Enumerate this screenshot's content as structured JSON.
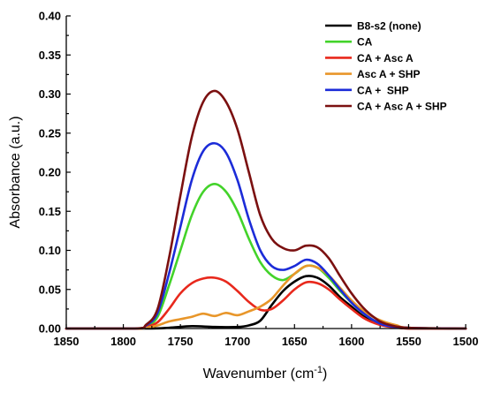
{
  "chart_data": {
    "type": "line",
    "title": "",
    "xlabel": "Wavenumber (cm",
    "xlabel_sup": "-1",
    "xlabel_suffix": ")",
    "ylabel": "Absorbance (a.u.)",
    "xlim": [
      1850,
      1500
    ],
    "x_reversed": true,
    "ylim": [
      0,
      0.4
    ],
    "xticks": [
      1850,
      1800,
      1750,
      1700,
      1650,
      1600,
      1550,
      1500
    ],
    "yticks": [
      0.0,
      0.05,
      0.1,
      0.15,
      0.2,
      0.25,
      0.3,
      0.35,
      0.4
    ],
    "ytick_labels": [
      "0.00",
      "0.05",
      "0.10",
      "0.15",
      "0.20",
      "0.25",
      "0.30",
      "0.35",
      "0.40"
    ],
    "grid": false,
    "legend_position": "top-right",
    "series": [
      {
        "name": "B8-s2 (none)",
        "color": "#000000",
        "points": [
          [
            1850,
            0.0
          ],
          [
            1780,
            0.0
          ],
          [
            1760,
            0.001
          ],
          [
            1740,
            0.003
          ],
          [
            1720,
            0.002
          ],
          [
            1700,
            0.002
          ],
          [
            1690,
            0.004
          ],
          [
            1680,
            0.01
          ],
          [
            1670,
            0.03
          ],
          [
            1660,
            0.048
          ],
          [
            1650,
            0.06
          ],
          [
            1640,
            0.067
          ],
          [
            1630,
            0.065
          ],
          [
            1620,
            0.055
          ],
          [
            1610,
            0.04
          ],
          [
            1600,
            0.028
          ],
          [
            1590,
            0.016
          ],
          [
            1580,
            0.008
          ],
          [
            1570,
            0.004
          ],
          [
            1550,
            0.0
          ],
          [
            1500,
            0.0
          ]
        ]
      },
      {
        "name": "CA",
        "color": "#43d32a",
        "points": [
          [
            1850,
            0.0
          ],
          [
            1790,
            0.0
          ],
          [
            1780,
            0.003
          ],
          [
            1770,
            0.015
          ],
          [
            1760,
            0.055
          ],
          [
            1750,
            0.1
          ],
          [
            1740,
            0.145
          ],
          [
            1730,
            0.175
          ],
          [
            1720,
            0.185
          ],
          [
            1710,
            0.175
          ],
          [
            1700,
            0.15
          ],
          [
            1690,
            0.115
          ],
          [
            1680,
            0.085
          ],
          [
            1670,
            0.068
          ],
          [
            1660,
            0.062
          ],
          [
            1650,
            0.07
          ],
          [
            1640,
            0.08
          ],
          [
            1630,
            0.078
          ],
          [
            1620,
            0.065
          ],
          [
            1610,
            0.048
          ],
          [
            1600,
            0.033
          ],
          [
            1590,
            0.02
          ],
          [
            1580,
            0.01
          ],
          [
            1570,
            0.004
          ],
          [
            1550,
            0.001
          ],
          [
            1500,
            0.0
          ]
        ]
      },
      {
        "name": "CA + Asc A",
        "color": "#e8281c",
        "points": [
          [
            1850,
            0.0
          ],
          [
            1790,
            0.0
          ],
          [
            1780,
            0.002
          ],
          [
            1770,
            0.008
          ],
          [
            1760,
            0.025
          ],
          [
            1750,
            0.045
          ],
          [
            1740,
            0.058
          ],
          [
            1730,
            0.064
          ],
          [
            1720,
            0.065
          ],
          [
            1710,
            0.06
          ],
          [
            1700,
            0.048
          ],
          [
            1690,
            0.034
          ],
          [
            1680,
            0.024
          ],
          [
            1670,
            0.025
          ],
          [
            1660,
            0.036
          ],
          [
            1650,
            0.05
          ],
          [
            1640,
            0.059
          ],
          [
            1630,
            0.058
          ],
          [
            1620,
            0.05
          ],
          [
            1610,
            0.037
          ],
          [
            1600,
            0.025
          ],
          [
            1590,
            0.014
          ],
          [
            1580,
            0.007
          ],
          [
            1570,
            0.003
          ],
          [
            1550,
            0.0
          ],
          [
            1500,
            0.0
          ]
        ]
      },
      {
        "name": "Asc A + SHP",
        "color": "#e8962a",
        "points": [
          [
            1850,
            0.0
          ],
          [
            1790,
            0.0
          ],
          [
            1780,
            0.001
          ],
          [
            1770,
            0.004
          ],
          [
            1760,
            0.009
          ],
          [
            1750,
            0.012
          ],
          [
            1740,
            0.015
          ],
          [
            1730,
            0.019
          ],
          [
            1720,
            0.016
          ],
          [
            1710,
            0.02
          ],
          [
            1700,
            0.017
          ],
          [
            1690,
            0.022
          ],
          [
            1680,
            0.028
          ],
          [
            1670,
            0.038
          ],
          [
            1660,
            0.055
          ],
          [
            1650,
            0.07
          ],
          [
            1640,
            0.08
          ],
          [
            1630,
            0.078
          ],
          [
            1620,
            0.068
          ],
          [
            1610,
            0.052
          ],
          [
            1600,
            0.036
          ],
          [
            1590,
            0.023
          ],
          [
            1580,
            0.014
          ],
          [
            1570,
            0.008
          ],
          [
            1560,
            0.004
          ],
          [
            1550,
            0.001
          ],
          [
            1500,
            0.0
          ]
        ]
      },
      {
        "name": "CA +  SHP",
        "color": "#1c2cd8",
        "points": [
          [
            1850,
            0.0
          ],
          [
            1790,
            0.0
          ],
          [
            1780,
            0.004
          ],
          [
            1770,
            0.02
          ],
          [
            1760,
            0.07
          ],
          [
            1750,
            0.13
          ],
          [
            1740,
            0.19
          ],
          [
            1730,
            0.227
          ],
          [
            1720,
            0.237
          ],
          [
            1710,
            0.225
          ],
          [
            1700,
            0.19
          ],
          [
            1690,
            0.14
          ],
          [
            1680,
            0.1
          ],
          [
            1670,
            0.08
          ],
          [
            1660,
            0.075
          ],
          [
            1650,
            0.08
          ],
          [
            1640,
            0.088
          ],
          [
            1630,
            0.083
          ],
          [
            1620,
            0.068
          ],
          [
            1610,
            0.05
          ],
          [
            1600,
            0.033
          ],
          [
            1590,
            0.02
          ],
          [
            1580,
            0.01
          ],
          [
            1570,
            0.004
          ],
          [
            1550,
            0.001
          ],
          [
            1500,
            0.0
          ]
        ]
      },
      {
        "name": "CA + Asc A + SHP",
        "color": "#7b1010",
        "points": [
          [
            1850,
            0.0
          ],
          [
            1790,
            0.0
          ],
          [
            1780,
            0.005
          ],
          [
            1770,
            0.025
          ],
          [
            1760,
            0.09
          ],
          [
            1750,
            0.17
          ],
          [
            1740,
            0.245
          ],
          [
            1730,
            0.29
          ],
          [
            1720,
            0.304
          ],
          [
            1710,
            0.29
          ],
          [
            1700,
            0.255
          ],
          [
            1690,
            0.2
          ],
          [
            1680,
            0.145
          ],
          [
            1670,
            0.115
          ],
          [
            1660,
            0.103
          ],
          [
            1650,
            0.1
          ],
          [
            1640,
            0.106
          ],
          [
            1630,
            0.104
          ],
          [
            1620,
            0.09
          ],
          [
            1610,
            0.067
          ],
          [
            1600,
            0.045
          ],
          [
            1590,
            0.027
          ],
          [
            1580,
            0.014
          ],
          [
            1570,
            0.006
          ],
          [
            1550,
            0.001
          ],
          [
            1500,
            0.0
          ]
        ]
      }
    ]
  }
}
